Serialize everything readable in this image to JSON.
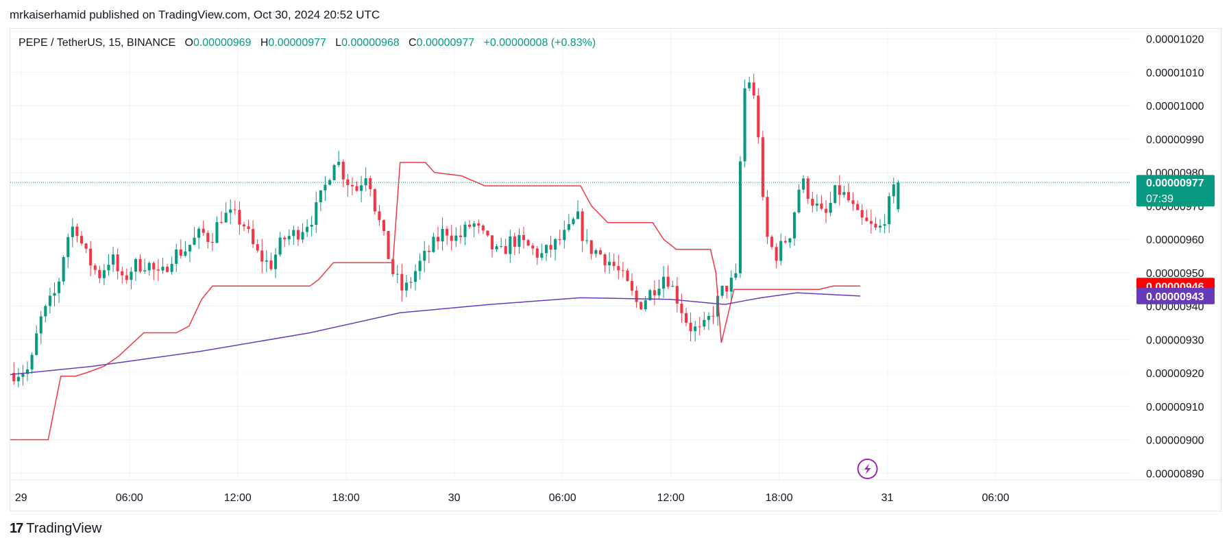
{
  "header": {
    "published_by": "mrkaiserhamid published on TradingView.com, Oct 30, 2024 20:52 UTC"
  },
  "legend": {
    "symbol": "PEPE / TetherUS, 15, BINANCE",
    "o_label": "O",
    "o_value": "0.00000969",
    "h_label": "H",
    "h_value": "0.00000977",
    "l_label": "L",
    "l_value": "0.00000968",
    "c_label": "C",
    "c_value": "0.00000977",
    "change": "+0.00000008 (+0.83%)"
  },
  "badges": {
    "last_price": "0.00000977",
    "countdown": "07:39",
    "red_line_value": "0.00000946",
    "purple_line_value": "0.00000943"
  },
  "footer": {
    "brand": "TradingView",
    "logo_mark": "17"
  },
  "colors": {
    "up": "#089981",
    "down": "#f23645",
    "red_line": "#f23645",
    "purple_line": "#673ab7",
    "grid": "#f0f3fa",
    "background": "#ffffff"
  },
  "icons": {
    "lightning": "lightning-icon"
  },
  "chart_data": {
    "type": "candlestick",
    "title": "PEPE / TetherUS, 15, BINANCE",
    "y_ticks": [
      "0.00001020",
      "0.00001010",
      "0.00001000",
      "0.00000990",
      "0.00000980",
      "0.00000970",
      "0.00000960",
      "0.00000950",
      "0.00000940",
      "0.00000930",
      "0.00000920",
      "0.00000910",
      "0.00000900",
      "0.00000890"
    ],
    "y_tick_values": [
      1020,
      1010,
      1000,
      990,
      980,
      970,
      960,
      950,
      940,
      930,
      920,
      910,
      900,
      890
    ],
    "x_ticks": [
      "29",
      "06:00",
      "12:00",
      "18:00",
      "30",
      "06:00",
      "12:00",
      "18:00",
      "31",
      "06:00"
    ],
    "x_tick_hours": [
      0,
      6,
      12,
      18,
      24,
      30,
      36,
      42,
      48,
      54
    ],
    "x_unit": "hours since Oct 29 00:00 UTC",
    "y_unit": "price x 1e-9",
    "ylim": [
      888,
      1023
    ],
    "xlim": [
      -0.6,
      61.5
    ],
    "candle_start_hour": -0.4,
    "candle_interval_hours": 0.25,
    "close_anchors": [
      [
        -0.4,
        920
      ],
      [
        0.5,
        921
      ],
      [
        1.0,
        935
      ],
      [
        1.5,
        940
      ],
      [
        2.0,
        945
      ],
      [
        2.5,
        960
      ],
      [
        3.0,
        965
      ],
      [
        3.5,
        956
      ],
      [
        4.3,
        949
      ],
      [
        5.0,
        955
      ],
      [
        5.6,
        947
      ],
      [
        6.2,
        952
      ],
      [
        7.0,
        953
      ],
      [
        7.7,
        948
      ],
      [
        8.3,
        955
      ],
      [
        9.1,
        957
      ],
      [
        10.0,
        962
      ],
      [
        10.5,
        960
      ],
      [
        11.1,
        967
      ],
      [
        11.7,
        967
      ],
      [
        12.3,
        965
      ],
      [
        13.0,
        956
      ],
      [
        13.8,
        952
      ],
      [
        14.5,
        960
      ],
      [
        15.3,
        962
      ],
      [
        16.2,
        967
      ],
      [
        16.8,
        975
      ],
      [
        17.4,
        985
      ],
      [
        18.0,
        978
      ],
      [
        18.6,
        975
      ],
      [
        19.2,
        981
      ],
      [
        19.6,
        970
      ],
      [
        20.0,
        962
      ],
      [
        20.6,
        950
      ],
      [
        21.2,
        944
      ],
      [
        22.0,
        952
      ],
      [
        22.8,
        958
      ],
      [
        23.5,
        963
      ],
      [
        24.2,
        960
      ],
      [
        25.0,
        965
      ],
      [
        25.7,
        960
      ],
      [
        26.5,
        955
      ],
      [
        27.2,
        960
      ],
      [
        28.0,
        958
      ],
      [
        28.8,
        955
      ],
      [
        29.5,
        958
      ],
      [
        30.3,
        962
      ],
      [
        30.8,
        967
      ],
      [
        31.3,
        958
      ],
      [
        32.0,
        956
      ],
      [
        32.7,
        953
      ],
      [
        33.4,
        948
      ],
      [
        34.2,
        940
      ],
      [
        35.0,
        945
      ],
      [
        35.7,
        950
      ],
      [
        36.3,
        943
      ],
      [
        37.0,
        934
      ],
      [
        37.7,
        932
      ],
      [
        38.3,
        938
      ],
      [
        38.9,
        945
      ],
      [
        39.6,
        948
      ],
      [
        40.0,
        1004
      ],
      [
        40.4,
        1008
      ],
      [
        40.8,
        996
      ],
      [
        41.2,
        962
      ],
      [
        41.8,
        955
      ],
      [
        42.6,
        962
      ],
      [
        43.2,
        978
      ],
      [
        43.8,
        972
      ],
      [
        44.5,
        966
      ],
      [
        45.2,
        975
      ],
      [
        45.8,
        972
      ],
      [
        46.4,
        966
      ],
      [
        47.0,
        964
      ],
      [
        47.5,
        962
      ],
      [
        48.0,
        969
      ],
      [
        48.4,
        975
      ],
      [
        48.8,
        977
      ]
    ],
    "series": [
      {
        "name": "",
        "color": "#f23645",
        "type": "step",
        "points": [
          [
            -0.6,
            900
          ],
          [
            1.5,
            900
          ],
          [
            2.2,
            919
          ],
          [
            3.0,
            919
          ],
          [
            3.6,
            920
          ],
          [
            4.6,
            922
          ],
          [
            5.4,
            925
          ],
          [
            6.2,
            929
          ],
          [
            6.8,
            932
          ],
          [
            8.6,
            932
          ],
          [
            9.3,
            934
          ],
          [
            10.0,
            942
          ],
          [
            10.6,
            946
          ],
          [
            16.0,
            946
          ],
          [
            16.5,
            948
          ],
          [
            17.3,
            953
          ],
          [
            20.6,
            953
          ],
          [
            20.6,
            953
          ],
          [
            21.0,
            983
          ],
          [
            22.4,
            983
          ],
          [
            22.9,
            980
          ],
          [
            24.4,
            979
          ],
          [
            25.7,
            976
          ],
          [
            31.0,
            976
          ],
          [
            31.6,
            970
          ],
          [
            32.5,
            965
          ],
          [
            35.0,
            965
          ],
          [
            35.6,
            960
          ],
          [
            36.3,
            957
          ],
          [
            38.2,
            957
          ],
          [
            38.5,
            950
          ],
          [
            38.8,
            929
          ],
          [
            39.5,
            945
          ],
          [
            42.0,
            945
          ],
          [
            44.2,
            945
          ],
          [
            45.0,
            946
          ],
          [
            46.5,
            946
          ]
        ]
      },
      {
        "name": "",
        "color": "#673ab7",
        "type": "line",
        "points": [
          [
            -0.6,
            919.5
          ],
          [
            4.0,
            922
          ],
          [
            10.0,
            926.5
          ],
          [
            16.0,
            932
          ],
          [
            21.0,
            938
          ],
          [
            26.0,
            940.5
          ],
          [
            31.0,
            942.5
          ],
          [
            36.0,
            942
          ],
          [
            38.0,
            941
          ],
          [
            39.0,
            940.5
          ],
          [
            40.0,
            941.5
          ],
          [
            41.0,
            942.5
          ],
          [
            43.0,
            944
          ],
          [
            46.5,
            943
          ]
        ]
      }
    ],
    "red_line_last": 946,
    "purple_line_last": 943,
    "last_price": 977
  }
}
